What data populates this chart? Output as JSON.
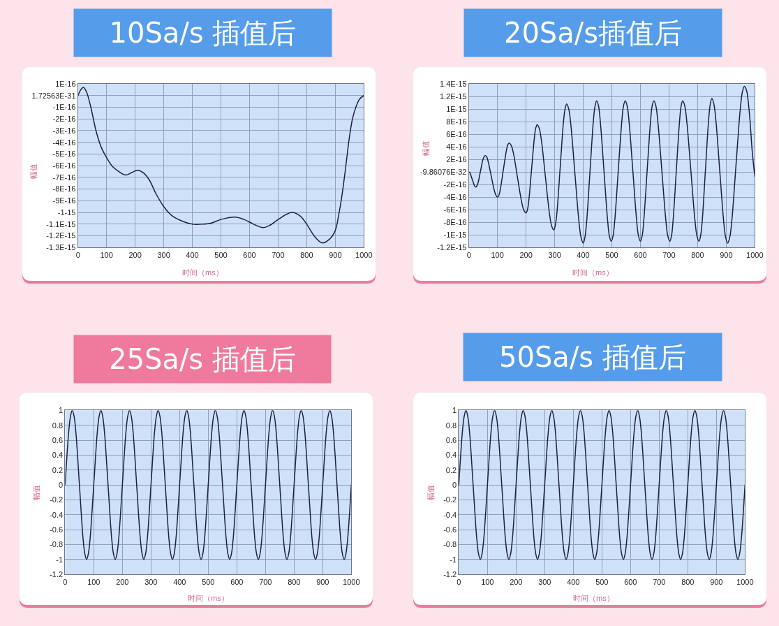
{
  "chart_data": [
    {
      "type": "line",
      "title": "10Sa/s 插值后",
      "xlabel": "时间（ms）",
      "ylabel": "幅值",
      "grid": true,
      "x": [
        0,
        10,
        19,
        30,
        45,
        63,
        81,
        100,
        122,
        143,
        167,
        187,
        208,
        228,
        249,
        273,
        300,
        330,
        371,
        400,
        435,
        467,
        500,
        549,
        581,
        614,
        647,
        671,
        700,
        748,
        777,
        800,
        826,
        854,
        879,
        899,
        912,
        923,
        936,
        948,
        960,
        972,
        985,
        1000
      ],
      "series": [
        {
          "color": "#1c2140",
          "values": [
            0,
            5e-17,
            7e-17,
            3e-17,
            -1e-16,
            -3e-16,
            -4.4e-16,
            -5.3e-16,
            -6.1e-16,
            -6.5e-16,
            -6.8e-16,
            -6.6e-16,
            -6.4e-16,
            -6.6e-16,
            -7.2e-16,
            -8.4e-16,
            -9.5e-16,
            -1.03e-15,
            -1.08e-15,
            -1.1e-15,
            -1.1e-15,
            -1.09e-15,
            -1.06e-15,
            -1.04e-15,
            -1.06e-15,
            -1.1e-15,
            -1.13e-15,
            -1.11e-15,
            -1.06e-15,
            -1e-15,
            -1.03e-15,
            -1.1e-15,
            -1.2e-15,
            -1.26e-15,
            -1.23e-15,
            -1.16e-15,
            -1.02e-15,
            -8.6e-16,
            -6.2e-16,
            -3.8e-16,
            -2e-16,
            -1e-16,
            -3e-17,
            0
          ]
        }
      ],
      "xlim": [
        0,
        1000
      ],
      "xticks": [
        0,
        100,
        200,
        300,
        400,
        500,
        600,
        700,
        800,
        900,
        1000
      ],
      "ylim": [
        -1.3e-15,
        1e-16
      ],
      "yticks": [
        {
          "value": -1.3e-15,
          "label": "-1.3E-15"
        },
        {
          "value": -1.2e-15,
          "label": "-1.2E-15"
        },
        {
          "value": -1.1e-15,
          "label": "-1.1E-15"
        },
        {
          "value": -1e-15,
          "label": "-1-15"
        },
        {
          "value": -9e-16,
          "label": "-9E-16"
        },
        {
          "value": -8e-16,
          "label": "-8E-16"
        },
        {
          "value": -7e-16,
          "label": "-7E-16"
        },
        {
          "value": -6e-16,
          "label": "-6E-16"
        },
        {
          "value": -5e-16,
          "label": "-5E-16"
        },
        {
          "value": -4e-16,
          "label": "-4E-16"
        },
        {
          "value": -3e-16,
          "label": "-3E-16"
        },
        {
          "value": -2e-16,
          "label": "-2E-16"
        },
        {
          "value": -1e-16,
          "label": "-1E-16"
        },
        {
          "value": 1.72563e-31,
          "label": "1.72563E-31"
        },
        {
          "value": 1e-16,
          "label": "1E-16"
        }
      ]
    },
    {
      "type": "line",
      "title": "20Sa/s插值后",
      "xlabel": "时间（ms）",
      "ylabel": "幅值",
      "grid": true,
      "x": [
        0,
        3,
        6,
        12,
        18,
        21,
        24,
        28.1,
        32.3,
        40.5,
        48.8,
        52.9,
        57,
        62.4,
        67.8,
        78.5,
        89.3,
        94.6,
        100,
        105.1,
        110.3,
        120.5,
        130.8,
        135.9,
        141,
        148.4,
        155.8,
        170.5,
        185.3,
        192.6,
        200,
        204.9,
        209.8,
        219.5,
        229.3,
        234.1,
        239,
        246.3,
        253.5,
        268,
        282.5,
        289.8,
        297,
        302.6,
        308.3,
        319.5,
        330.8,
        336.4,
        342,
        349.3,
        356.5,
        371,
        385.5,
        392.8,
        400,
        405.9,
        411.8,
        423.5,
        435.3,
        441.1,
        447,
        453.4,
        459.8,
        472.5,
        485.3,
        491.6,
        498,
        504.1,
        510.3,
        522.5,
        534.8,
        540.9,
        547,
        553.6,
        560.3,
        573.5,
        586.8,
        593.4,
        600,
        605.9,
        611.8,
        623.5,
        635.3,
        641.1,
        647,
        654,
        661,
        675,
        689,
        696,
        703,
        708.6,
        714.3,
        725.5,
        736.8,
        742.4,
        748,
        755.1,
        762.3,
        776.5,
        790.8,
        797.9,
        805,
        810.6,
        816.3,
        827.5,
        838.8,
        844.4,
        850,
        856.9,
        863.8,
        877.5,
        891.3,
        898.1,
        905,
        912.4,
        919.8,
        934.5,
        949.3,
        956.6,
        964,
        968.5,
        973,
        982,
        991,
        1000
      ],
      "series": [
        {
          "color": "#1c2140",
          "values": [
            0,
            -1e-17,
            -4e-17,
            -1.2e-16,
            -2e-16,
            -2.3e-16,
            -2.4e-16,
            -2.2e-16,
            -1.7e-16,
            1e-17,
            1.9e-16,
            2.4e-16,
            2.6e-16,
            2.4e-16,
            1.6e-16,
            -7e-17,
            -3e-16,
            -3.7e-16,
            -4e-16,
            -3.7e-16,
            -2.7e-16,
            3e-17,
            3.3e-16,
            4.3e-16,
            4.6e-16,
            4.2e-16,
            3e-16,
            -1e-16,
            -4.9e-16,
            -6.1e-16,
            -6.5e-16,
            -6e-16,
            -4.5e-16,
            5e-17,
            5.5e-16,
            7e-16,
            7.5e-16,
            6.9e-16,
            5.1e-16,
            -9e-17,
            -6.8e-16,
            -8.6e-16,
            -9.2e-16,
            -8.4e-16,
            -6.3e-16,
            8e-17,
            7.9e-16,
            1e-15,
            1.08e-15,
            1e-15,
            7.6e-16,
            -3e-17,
            -8.1e-16,
            -1.05e-15,
            -1.13e-15,
            -1.04e-15,
            -8e-16,
            0,
            8e-16,
            1.04e-15,
            1.13e-15,
            1.05e-15,
            8e-16,
            2e-17,
            -7.7e-16,
            -1.02e-15,
            -1.1e-15,
            -1.02e-15,
            -7.7e-16,
            2e-17,
            8e-16,
            1.05e-15,
            1.13e-15,
            1.05e-15,
            8e-16,
            2e-17,
            -7.7e-16,
            -1.02e-15,
            -1.1e-15,
            -1.02e-15,
            -7.7e-16,
            2e-17,
            8e-16,
            1.05e-15,
            1.13e-15,
            1.05e-15,
            8e-16,
            2e-17,
            -7.7e-16,
            -1.02e-15,
            -1.1e-15,
            -1.02e-15,
            -7.7e-16,
            2e-17,
            8e-16,
            1.05e-15,
            1.13e-15,
            1.05e-15,
            8e-16,
            2e-17,
            -7.7e-16,
            -1.02e-15,
            -1.1e-15,
            -1.01e-15,
            -7.7e-16,
            4e-17,
            8.4e-16,
            1.08e-15,
            1.17e-15,
            1.08e-15,
            8.3e-16,
            2e-17,
            -7.9e-16,
            -1.04e-15,
            -1.13e-15,
            -1.04e-15,
            -7.7e-16,
            1.2e-16,
            1e-15,
            1.27e-15,
            1.36e-15,
            1.33e-15,
            1.26e-15,
            8.9e-16,
            3.3e-16,
            -7e-17
          ]
        }
      ],
      "xlim": [
        0,
        1000
      ],
      "xticks": [
        0,
        100,
        200,
        300,
        400,
        500,
        600,
        700,
        800,
        900,
        1000
      ],
      "ylim": [
        -1.2e-15,
        1.4e-15
      ],
      "yticks": [
        {
          "value": -1.2e-15,
          "label": "-1.2E-15"
        },
        {
          "value": -1e-15,
          "label": "-1E-15"
        },
        {
          "value": -8e-16,
          "label": "-8E-16"
        },
        {
          "value": -6e-16,
          "label": "-6E-16"
        },
        {
          "value": -4e-16,
          "label": "-4E-16"
        },
        {
          "value": -2e-16,
          "label": "-2E-16"
        },
        {
          "value": -9.86076e-32,
          "label": "-9.86076E-32"
        },
        {
          "value": 2e-16,
          "label": "2E-16"
        },
        {
          "value": 4e-16,
          "label": "4E-16"
        },
        {
          "value": 6e-16,
          "label": "6E-16"
        },
        {
          "value": 8e-16,
          "label": "8E-16"
        },
        {
          "value": 1e-15,
          "label": "1E-15"
        },
        {
          "value": 1.2e-15,
          "label": "1.2E-15"
        },
        {
          "value": 1.4e-15,
          "label": "1.4E-15"
        }
      ]
    },
    {
      "type": "line",
      "title": "25Sa/s 插值后",
      "xlabel": "时间（ms）",
      "ylabel": "幅值",
      "grid": true,
      "x": [
        0,
        12.5,
        18.75,
        25,
        31.25,
        37.5,
        50,
        62.5,
        68.75,
        75,
        81.25,
        87.5,
        100,
        112.5,
        118.75,
        125,
        131.25,
        137.5,
        150,
        162.5,
        168.75,
        175,
        181.25,
        187.5,
        200,
        212.5,
        218.75,
        225,
        231.25,
        237.5,
        250,
        262.5,
        268.75,
        275,
        281.25,
        287.5,
        300,
        312.5,
        318.75,
        325,
        331.25,
        337.5,
        350,
        362.5,
        368.75,
        375,
        381.25,
        387.5,
        400,
        412.5,
        418.75,
        425,
        431.25,
        437.5,
        450,
        462.5,
        468.75,
        475,
        481.25,
        487.5,
        500,
        512.5,
        518.75,
        525,
        531.25,
        537.5,
        550,
        562.5,
        568.75,
        575,
        581.25,
        587.5,
        600,
        612.5,
        618.75,
        625,
        631.25,
        637.5,
        650,
        662.5,
        668.75,
        675,
        681.25,
        687.5,
        700,
        712.5,
        718.75,
        725,
        731.25,
        737.5,
        750,
        762.5,
        768.75,
        775,
        781.25,
        787.5,
        800,
        812.5,
        818.75,
        825,
        831.25,
        837.5,
        850,
        862.5,
        868.75,
        875,
        881.25,
        887.5,
        900,
        912.5,
        918.75,
        925,
        931.25,
        937.5,
        950,
        962.5,
        968.75,
        975,
        981.25,
        987.5,
        1000
      ],
      "series": [
        {
          "color": "#1c2140",
          "values": [
            0,
            0.71,
            0.92,
            1,
            0.92,
            0.71,
            0,
            -0.71,
            -0.92,
            -1,
            -0.92,
            -0.71,
            0,
            0.71,
            0.92,
            1,
            0.92,
            0.71,
            0,
            -0.71,
            -0.92,
            -1,
            -0.92,
            -0.71,
            0,
            0.71,
            0.92,
            1,
            0.92,
            0.71,
            0,
            -0.71,
            -0.92,
            -1,
            -0.92,
            -0.71,
            0,
            0.71,
            0.92,
            1,
            0.92,
            0.71,
            0,
            -0.71,
            -0.92,
            -1,
            -0.92,
            -0.71,
            0,
            0.71,
            0.92,
            1,
            0.92,
            0.71,
            0,
            -0.71,
            -0.92,
            -1,
            -0.92,
            -0.71,
            0,
            0.71,
            0.92,
            1,
            0.92,
            0.71,
            0,
            -0.71,
            -0.92,
            -1,
            -0.92,
            -0.71,
            0,
            0.71,
            0.92,
            1,
            0.92,
            0.71,
            0,
            -0.71,
            -0.92,
            -1,
            -0.92,
            -0.71,
            0,
            0.71,
            0.92,
            1,
            0.92,
            0.71,
            0,
            -0.71,
            -0.92,
            -1,
            -0.92,
            -0.71,
            0,
            0.71,
            0.92,
            1,
            0.92,
            0.71,
            0,
            -0.71,
            -0.92,
            -1,
            -0.92,
            -0.71,
            0,
            0.71,
            0.92,
            1,
            0.92,
            0.71,
            0,
            -0.71,
            -0.92,
            -1,
            -0.92,
            -0.71,
            0
          ]
        }
      ],
      "xlim": [
        0,
        1000
      ],
      "xticks": [
        0,
        100,
        200,
        300,
        400,
        500,
        600,
        700,
        800,
        900,
        1000
      ],
      "ylim": [
        -1.2,
        1
      ],
      "yticks": [
        -1.2,
        -1,
        -0.8,
        -0.6,
        -0.4,
        -0.2,
        0,
        0.2,
        0.4,
        0.6,
        0.8,
        1
      ]
    },
    {
      "type": "line",
      "title": "50Sa/s 插值后",
      "xlabel": "时间（ms）",
      "ylabel": "幅值",
      "grid": true,
      "x": [
        0,
        12.5,
        18.75,
        25,
        31.25,
        37.5,
        50,
        62.5,
        68.75,
        75,
        81.25,
        87.5,
        100,
        112.5,
        118.75,
        125,
        131.25,
        137.5,
        150,
        162.5,
        168.75,
        175,
        181.25,
        187.5,
        200,
        212.5,
        218.75,
        225,
        231.25,
        237.5,
        250,
        262.5,
        268.75,
        275,
        281.25,
        287.5,
        300,
        312.5,
        318.75,
        325,
        331.25,
        337.5,
        350,
        362.5,
        368.75,
        375,
        381.25,
        387.5,
        400,
        412.5,
        418.75,
        425,
        431.25,
        437.5,
        450,
        462.5,
        468.75,
        475,
        481.25,
        487.5,
        500,
        512.5,
        518.75,
        525,
        531.25,
        537.5,
        550,
        562.5,
        568.75,
        575,
        581.25,
        587.5,
        600,
        612.5,
        618.75,
        625,
        631.25,
        637.5,
        650,
        662.5,
        668.75,
        675,
        681.25,
        687.5,
        700,
        712.5,
        718.75,
        725,
        731.25,
        737.5,
        750,
        762.5,
        768.75,
        775,
        781.25,
        787.5,
        800,
        812.5,
        818.75,
        825,
        831.25,
        837.5,
        850,
        862.5,
        868.75,
        875,
        881.25,
        887.5,
        900,
        912.5,
        918.75,
        925,
        931.25,
        937.5,
        950,
        962.5,
        968.75,
        975,
        981.25,
        987.5,
        1000
      ],
      "series": [
        {
          "color": "#1c2140",
          "values": [
            0,
            0.71,
            0.92,
            1,
            0.92,
            0.71,
            0,
            -0.71,
            -0.92,
            -1,
            -0.92,
            -0.71,
            0,
            0.71,
            0.92,
            1,
            0.92,
            0.71,
            0,
            -0.71,
            -0.92,
            -1,
            -0.92,
            -0.71,
            0,
            0.71,
            0.92,
            1,
            0.92,
            0.71,
            0,
            -0.71,
            -0.92,
            -1,
            -0.92,
            -0.71,
            0,
            0.71,
            0.92,
            1,
            0.92,
            0.71,
            0,
            -0.71,
            -0.92,
            -1,
            -0.92,
            -0.71,
            0,
            0.71,
            0.92,
            1,
            0.92,
            0.71,
            0,
            -0.71,
            -0.92,
            -1,
            -0.92,
            -0.71,
            0,
            0.71,
            0.92,
            1,
            0.92,
            0.71,
            0,
            -0.71,
            -0.92,
            -1,
            -0.92,
            -0.71,
            0,
            0.71,
            0.92,
            1,
            0.92,
            0.71,
            0,
            -0.71,
            -0.92,
            -1,
            -0.92,
            -0.71,
            0,
            0.71,
            0.92,
            1,
            0.92,
            0.71,
            0,
            -0.71,
            -0.92,
            -1,
            -0.92,
            -0.71,
            0,
            0.71,
            0.92,
            1,
            0.92,
            0.71,
            0,
            -0.71,
            -0.92,
            -1,
            -0.92,
            -0.71,
            0,
            0.71,
            0.92,
            1,
            0.92,
            0.71,
            0,
            -0.71,
            -0.92,
            -1,
            -0.92,
            -0.71,
            0
          ]
        }
      ],
      "xlim": [
        0,
        1000
      ],
      "xticks": [
        0,
        100,
        200,
        300,
        400,
        500,
        600,
        700,
        800,
        900,
        1000
      ],
      "ylim": [
        -1.2,
        1
      ],
      "yticks": [
        -1.2,
        -1,
        -0.8,
        -0.6,
        -0.4,
        -0.2,
        0,
        0.2,
        0.4,
        0.6,
        0.8,
        1
      ]
    }
  ]
}
